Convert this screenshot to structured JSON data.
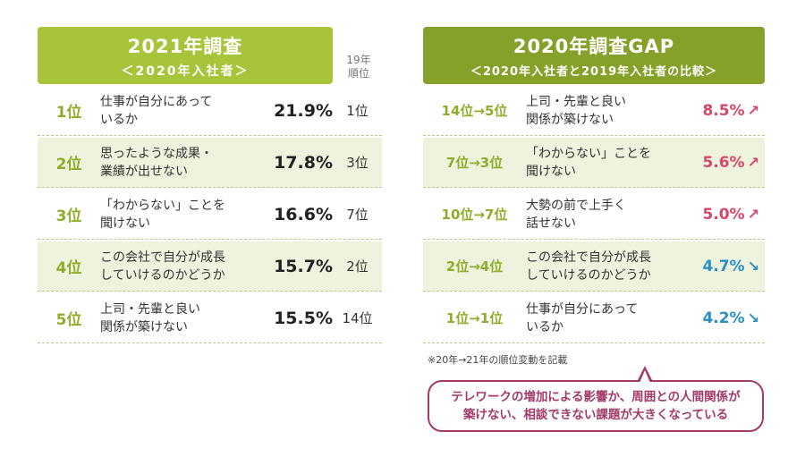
{
  "left": {
    "title": "2021年調査",
    "subtitle": "＜2020年入社者＞",
    "prev_col_label_1": "19年",
    "prev_col_label_2": "順位",
    "rows": [
      {
        "rank": "1位",
        "label_1": "仕事が自分にあって",
        "label_2": "いるか",
        "pct": "21.9%",
        "prev": "1位"
      },
      {
        "rank": "2位",
        "label_1": "思ったような成果・",
        "label_2": "業績が出せない",
        "pct": "17.8%",
        "prev": "3位"
      },
      {
        "rank": "3位",
        "label_1": "「わからない」ことを",
        "label_2": "聞けない",
        "pct": "16.6%",
        "prev": "7位"
      },
      {
        "rank": "4位",
        "label_1": "この会社で自分が成長",
        "label_2": "していけるのかどうか",
        "pct": "15.7%",
        "prev": "2位"
      },
      {
        "rank": "5位",
        "label_1": "上司・先輩と良い",
        "label_2": "関係が築けない",
        "pct": "15.5%",
        "prev": "14位"
      }
    ]
  },
  "right": {
    "title": "2020年調査GAP",
    "subtitle": "＜2020年入社者と2019年入社者の比較＞",
    "rows": [
      {
        "change": "14位→5位",
        "label_1": "上司・先輩と良い",
        "label_2": "関係が築けない",
        "gap": "8.5%",
        "arrow": "↗",
        "dir": "up"
      },
      {
        "change": "7位→3位",
        "label_1": "「わからない」ことを",
        "label_2": "聞けない",
        "gap": "5.6%",
        "arrow": "↗",
        "dir": "up"
      },
      {
        "change": "10位→7位",
        "label_1": "大勢の前で上手く",
        "label_2": "話せない",
        "gap": "5.0%",
        "arrow": "↗",
        "dir": "up"
      },
      {
        "change": "2位→4位",
        "label_1": "この会社で自分が成長",
        "label_2": "していけるのかどうか",
        "gap": "4.7%",
        "arrow": "↘",
        "dir": "down"
      },
      {
        "change": "1位→1位",
        "label_1": "仕事が自分にあって",
        "label_2": "いるか",
        "gap": "4.2%",
        "arrow": "↘",
        "dir": "down"
      }
    ],
    "note": "※20年→21年の順位変動を記載"
  },
  "callout": {
    "line_1": "テレワークの増加による影響か、周囲との人間関係が",
    "line_2": "築けない、相談できない課題が大きくなっている"
  },
  "colors": {
    "left_header": "#a7c43a",
    "right_header": "#86a12a",
    "rank_green": "#8fad2a",
    "up_red": "#d6476a",
    "down_blue": "#2a8fc4",
    "callout": "#a23a6a"
  }
}
